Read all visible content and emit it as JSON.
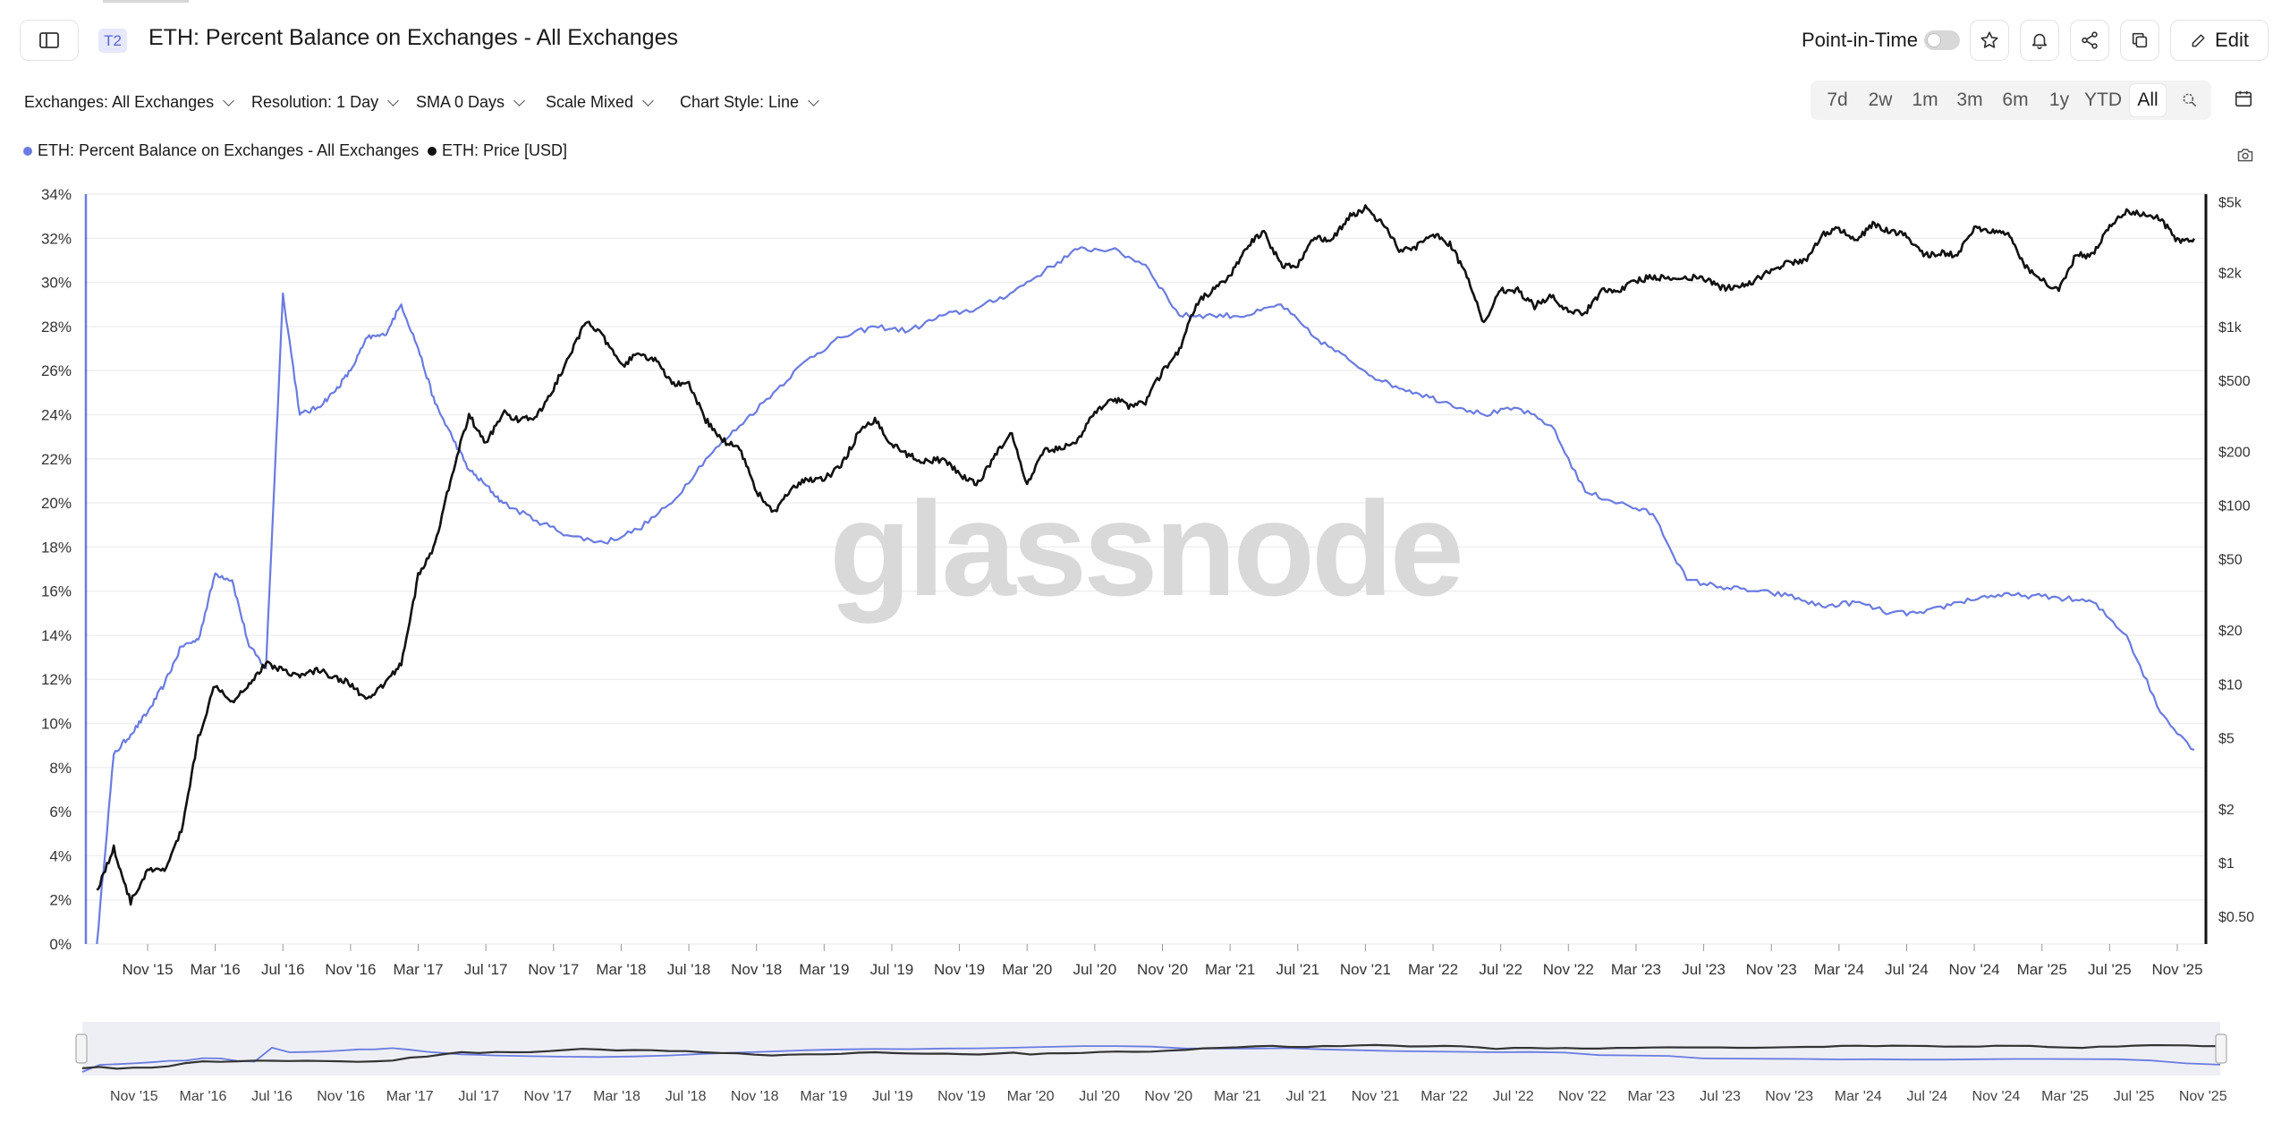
{
  "header": {
    "tier_badge": "T2",
    "title": "ETH: Percent Balance on Exchanges - All Exchanges",
    "point_in_time_label": "Point-in-Time",
    "edit_label": "Edit"
  },
  "filters": {
    "exchanges": "Exchanges: All Exchanges",
    "resolution": "Resolution: 1 Day",
    "sma": "SMA 0 Days",
    "scale": "Scale Mixed",
    "chart_style": "Chart Style: Line"
  },
  "ranges": [
    "7d",
    "2w",
    "1m",
    "3m",
    "6m",
    "1y",
    "YTD",
    "All"
  ],
  "active_range": "All",
  "watermark": "glassnode",
  "colors": {
    "balance": "#6a7be0",
    "price": "#111111",
    "accent": "#5564d6"
  },
  "icons": [
    "sidebar-toggle-icon",
    "star-icon",
    "bell-icon",
    "share-icon",
    "copy-icon",
    "pencil-icon",
    "zoom-icon",
    "calendar-icon",
    "camera-icon"
  ],
  "chart_data": {
    "type": "line",
    "legend_position": "top-left",
    "x_ticks": [
      "Nov '15",
      "Mar '16",
      "Jul '16",
      "Nov '16",
      "Mar '17",
      "Jul '17",
      "Nov '17",
      "Mar '18",
      "Jul '18",
      "Nov '18",
      "Mar '19",
      "Jul '19",
      "Nov '19",
      "Mar '20",
      "Jul '20",
      "Nov '20",
      "Mar '21",
      "Jul '21",
      "Nov '21",
      "Mar '22",
      "Jul '22",
      "Nov '22",
      "Mar '23",
      "Jul '23",
      "Nov '23",
      "Mar '24",
      "Jul '24",
      "Nov '24",
      "Mar '25",
      "Jul '25",
      "Nov '25"
    ],
    "x_range": [
      "2015-08",
      "2025-12"
    ],
    "y_left": {
      "range": [
        0,
        34
      ],
      "unit": "%",
      "ticks": [
        "0%",
        "2%",
        "4%",
        "6%",
        "8%",
        "10%",
        "12%",
        "14%",
        "16%",
        "18%",
        "20%",
        "22%",
        "24%",
        "26%",
        "28%",
        "30%",
        "32%",
        "34%"
      ]
    },
    "y_right": {
      "scale": "log",
      "range": [
        0.35,
        5500
      ],
      "ticks": [
        {
          "label": "$0.50",
          "value": 0.5
        },
        {
          "label": "$1",
          "value": 1
        },
        {
          "label": "$2",
          "value": 2
        },
        {
          "label": "$5",
          "value": 5
        },
        {
          "label": "$10",
          "value": 10
        },
        {
          "label": "$20",
          "value": 20
        },
        {
          "label": "$50",
          "value": 50
        },
        {
          "label": "$100",
          "value": 100
        },
        {
          "label": "$200",
          "value": 200
        },
        {
          "label": "$500",
          "value": 500
        },
        {
          "label": "$1k",
          "value": 1000
        },
        {
          "label": "$2k",
          "value": 2000
        },
        {
          "label": "$5k",
          "value": 5000
        }
      ]
    },
    "series": [
      {
        "name": "ETH: Percent Balance on Exchanges - All Exchanges",
        "axis": "left",
        "points": [
          [
            "2015-08",
            0
          ],
          [
            "2015-09",
            8.6
          ],
          [
            "2015-10",
            9.5
          ],
          [
            "2015-11",
            10.5
          ],
          [
            "2015-12",
            11.8
          ],
          [
            "2016-01",
            13.5
          ],
          [
            "2016-02",
            13.8
          ],
          [
            "2016-03",
            16.8
          ],
          [
            "2016-04",
            16.5
          ],
          [
            "2016-05",
            13.5
          ],
          [
            "2016-06",
            12.5
          ],
          [
            "2016-07",
            29.5
          ],
          [
            "2016-08",
            24.0
          ],
          [
            "2016-09",
            24.3
          ],
          [
            "2016-10",
            25.0
          ],
          [
            "2016-11",
            26.0
          ],
          [
            "2016-12",
            27.5
          ],
          [
            "2017-01",
            27.6
          ],
          [
            "2017-02",
            29.0
          ],
          [
            "2017-03",
            27.0
          ],
          [
            "2017-04",
            24.5
          ],
          [
            "2017-05",
            23.0
          ],
          [
            "2017-06",
            21.5
          ],
          [
            "2017-07",
            20.8
          ],
          [
            "2017-08",
            20.0
          ],
          [
            "2017-10",
            19.2
          ],
          [
            "2017-12",
            18.5
          ],
          [
            "2018-02",
            18.2
          ],
          [
            "2018-04",
            18.8
          ],
          [
            "2018-06",
            20.0
          ],
          [
            "2018-08",
            22.0
          ],
          [
            "2018-10",
            23.5
          ],
          [
            "2018-12",
            25.0
          ],
          [
            "2019-02",
            26.5
          ],
          [
            "2019-04",
            27.5
          ],
          [
            "2019-06",
            28.0
          ],
          [
            "2019-08",
            27.8
          ],
          [
            "2019-10",
            28.5
          ],
          [
            "2019-12",
            28.8
          ],
          [
            "2020-02",
            29.5
          ],
          [
            "2020-04",
            30.5
          ],
          [
            "2020-06",
            31.5
          ],
          [
            "2020-08",
            31.5
          ],
          [
            "2020-10",
            30.8
          ],
          [
            "2020-12",
            28.5
          ],
          [
            "2021-02",
            28.5
          ],
          [
            "2021-04",
            28.5
          ],
          [
            "2021-06",
            29.0
          ],
          [
            "2021-08",
            27.5
          ],
          [
            "2021-10",
            26.5
          ],
          [
            "2021-12",
            25.5
          ],
          [
            "2022-02",
            25.0
          ],
          [
            "2022-04",
            24.5
          ],
          [
            "2022-06",
            24.0
          ],
          [
            "2022-08",
            24.3
          ],
          [
            "2022-10",
            23.5
          ],
          [
            "2022-12",
            20.5
          ],
          [
            "2023-02",
            20.0
          ],
          [
            "2023-04",
            19.5
          ],
          [
            "2023-06",
            16.5
          ],
          [
            "2023-08",
            16.2
          ],
          [
            "2023-10",
            16.0
          ],
          [
            "2023-12",
            15.8
          ],
          [
            "2024-02",
            15.3
          ],
          [
            "2024-04",
            15.5
          ],
          [
            "2024-06",
            15.0
          ],
          [
            "2024-08",
            15.0
          ],
          [
            "2024-10",
            15.5
          ],
          [
            "2024-12",
            15.8
          ],
          [
            "2025-02",
            15.8
          ],
          [
            "2025-04",
            15.7
          ],
          [
            "2025-06",
            15.5
          ],
          [
            "2025-08",
            14.0
          ],
          [
            "2025-10",
            10.5
          ],
          [
            "2025-12",
            8.8
          ]
        ]
      },
      {
        "name": "ETH: Price [USD]",
        "axis": "right",
        "points": [
          [
            "2015-08",
            0.7
          ],
          [
            "2015-09",
            1.2
          ],
          [
            "2015-10",
            0.6
          ],
          [
            "2015-11",
            0.9
          ],
          [
            "2015-12",
            0.9
          ],
          [
            "2016-01",
            1.5
          ],
          [
            "2016-02",
            5
          ],
          [
            "2016-03",
            10
          ],
          [
            "2016-04",
            8
          ],
          [
            "2016-05",
            10
          ],
          [
            "2016-06",
            13
          ],
          [
            "2016-07",
            12
          ],
          [
            "2016-08",
            11
          ],
          [
            "2016-09",
            12
          ],
          [
            "2016-10",
            11
          ],
          [
            "2016-11",
            10
          ],
          [
            "2016-12",
            8
          ],
          [
            "2017-01",
            10
          ],
          [
            "2017-02",
            13
          ],
          [
            "2017-03",
            40
          ],
          [
            "2017-04",
            60
          ],
          [
            "2017-05",
            150
          ],
          [
            "2017-06",
            320
          ],
          [
            "2017-07",
            220
          ],
          [
            "2017-08",
            330
          ],
          [
            "2017-09",
            300
          ],
          [
            "2017-10",
            310
          ],
          [
            "2017-11",
            450
          ],
          [
            "2017-12",
            700
          ],
          [
            "2018-01",
            1100
          ],
          [
            "2018-02",
            850
          ],
          [
            "2018-03",
            600
          ],
          [
            "2018-04",
            700
          ],
          [
            "2018-05",
            650
          ],
          [
            "2018-06",
            480
          ],
          [
            "2018-07",
            470
          ],
          [
            "2018-08",
            300
          ],
          [
            "2018-09",
            230
          ],
          [
            "2018-10",
            210
          ],
          [
            "2018-11",
            120
          ],
          [
            "2018-12",
            90
          ],
          [
            "2019-01",
            120
          ],
          [
            "2019-02",
            140
          ],
          [
            "2019-03",
            140
          ],
          [
            "2019-04",
            165
          ],
          [
            "2019-05",
            250
          ],
          [
            "2019-06",
            300
          ],
          [
            "2019-07",
            220
          ],
          [
            "2019-08",
            190
          ],
          [
            "2019-09",
            175
          ],
          [
            "2019-10",
            180
          ],
          [
            "2019-11",
            150
          ],
          [
            "2019-12",
            130
          ],
          [
            "2020-01",
            180
          ],
          [
            "2020-02",
            260
          ],
          [
            "2020-03",
            130
          ],
          [
            "2020-04",
            200
          ],
          [
            "2020-05",
            210
          ],
          [
            "2020-06",
            230
          ],
          [
            "2020-07",
            330
          ],
          [
            "2020-08",
            400
          ],
          [
            "2020-09",
            360
          ],
          [
            "2020-10",
            380
          ],
          [
            "2020-11",
            560
          ],
          [
            "2020-12",
            730
          ],
          [
            "2021-01",
            1350
          ],
          [
            "2021-02",
            1600
          ],
          [
            "2021-03",
            1900
          ],
          [
            "2021-04",
            2800
          ],
          [
            "2021-05",
            3400
          ],
          [
            "2021-06",
            2200
          ],
          [
            "2021-07",
            2200
          ],
          [
            "2021-08",
            3200
          ],
          [
            "2021-09",
            3000
          ],
          [
            "2021-10",
            4100
          ],
          [
            "2021-11",
            4600
          ],
          [
            "2021-12",
            3800
          ],
          [
            "2022-01",
            2700
          ],
          [
            "2022-02",
            2800
          ],
          [
            "2022-03",
            3300
          ],
          [
            "2022-04",
            2900
          ],
          [
            "2022-05",
            1900
          ],
          [
            "2022-06",
            1050
          ],
          [
            "2022-07",
            1600
          ],
          [
            "2022-08",
            1600
          ],
          [
            "2022-09",
            1300
          ],
          [
            "2022-10",
            1500
          ],
          [
            "2022-11",
            1200
          ],
          [
            "2022-12",
            1200
          ],
          [
            "2023-01",
            1600
          ],
          [
            "2023-02",
            1600
          ],
          [
            "2023-03",
            1800
          ],
          [
            "2023-04",
            1900
          ],
          [
            "2023-05",
            1850
          ],
          [
            "2023-06",
            1880
          ],
          [
            "2023-07",
            1870
          ],
          [
            "2023-08",
            1650
          ],
          [
            "2023-09",
            1650
          ],
          [
            "2023-10",
            1800
          ],
          [
            "2023-11",
            2050
          ],
          [
            "2023-12",
            2300
          ],
          [
            "2024-01",
            2300
          ],
          [
            "2024-02",
            3300
          ],
          [
            "2024-03",
            3500
          ],
          [
            "2024-04",
            3000
          ],
          [
            "2024-05",
            3700
          ],
          [
            "2024-06",
            3400
          ],
          [
            "2024-07",
            3200
          ],
          [
            "2024-08",
            2500
          ],
          [
            "2024-09",
            2600
          ],
          [
            "2024-10",
            2500
          ],
          [
            "2024-11",
            3600
          ],
          [
            "2024-12",
            3400
          ],
          [
            "2025-01",
            3300
          ],
          [
            "2025-02",
            2200
          ],
          [
            "2025-03",
            1800
          ],
          [
            "2025-04",
            1600
          ],
          [
            "2025-05",
            2500
          ],
          [
            "2025-06",
            2500
          ],
          [
            "2025-07",
            3700
          ],
          [
            "2025-08",
            4400
          ],
          [
            "2025-09",
            4200
          ],
          [
            "2025-10",
            4000
          ],
          [
            "2025-11",
            3000
          ],
          [
            "2025-12",
            3100
          ]
        ]
      }
    ]
  }
}
